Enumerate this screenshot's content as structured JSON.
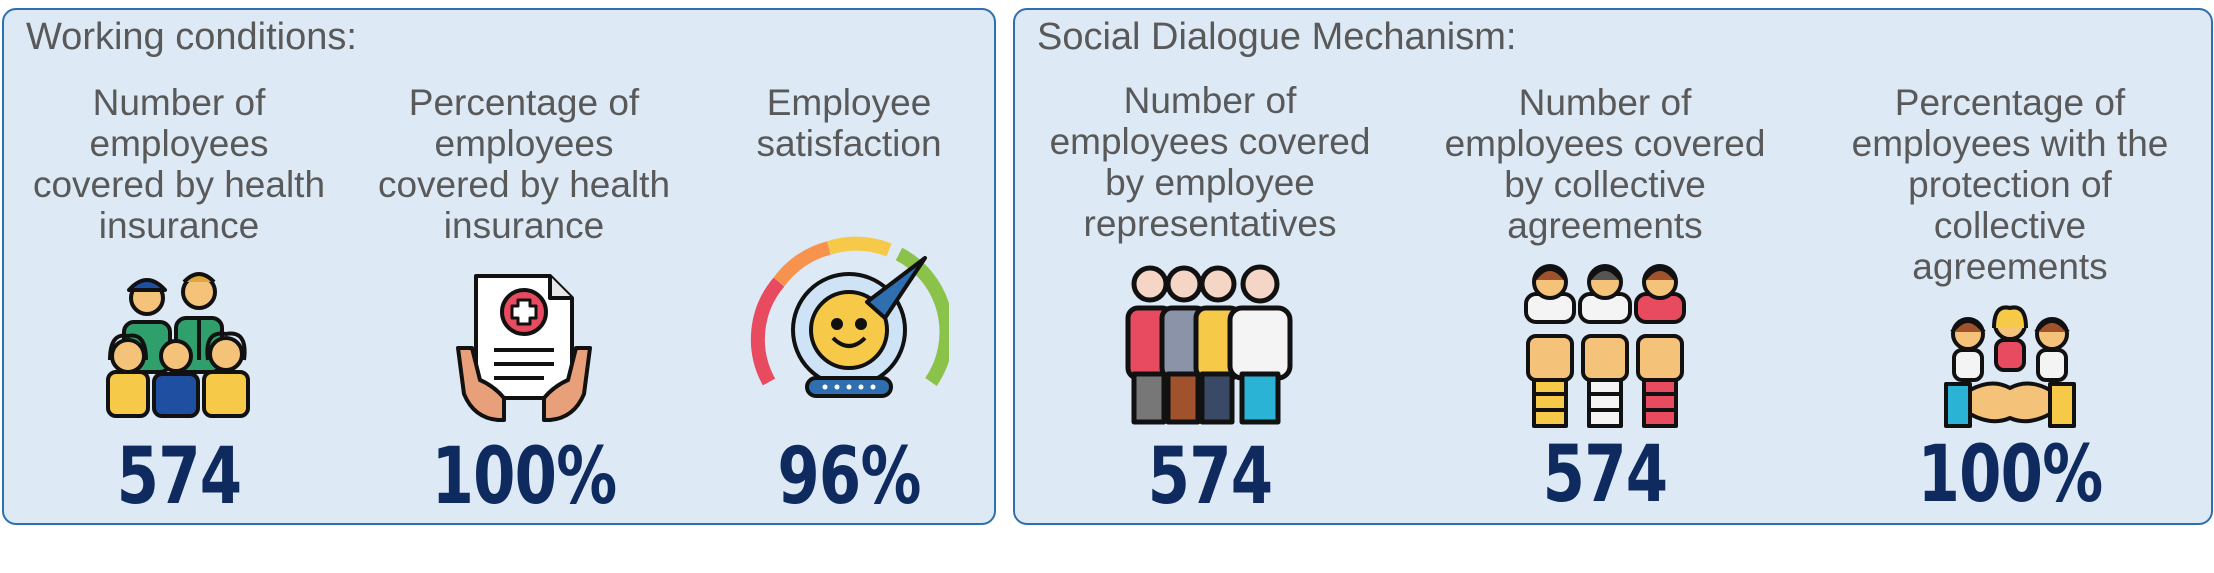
{
  "working_conditions": {
    "title": "Working conditions:",
    "metrics": [
      {
        "label": "Number of employees covered by health insurance",
        "value": "574",
        "icon": "employees-group-icon"
      },
      {
        "label": "Percentage of employees covered by health insurance",
        "value": "100%",
        "icon": "insurance-document-hands-icon"
      },
      {
        "label": "Employee satisfaction",
        "value": "96%",
        "icon": "satisfaction-gauge-icon"
      }
    ]
  },
  "social_dialogue": {
    "title": "Social Dialogue Mechanism:",
    "metrics": [
      {
        "label": "Number of employees covered by employee representatives",
        "value": "574",
        "icon": "representatives-group-icon"
      },
      {
        "label": "Number of employees covered by collective agreements",
        "value": "574",
        "icon": "raised-fists-icon"
      },
      {
        "label": "Percentage of employees with the protection of collective agreements",
        "value": "100%",
        "icon": "handshake-family-icon"
      }
    ]
  }
}
